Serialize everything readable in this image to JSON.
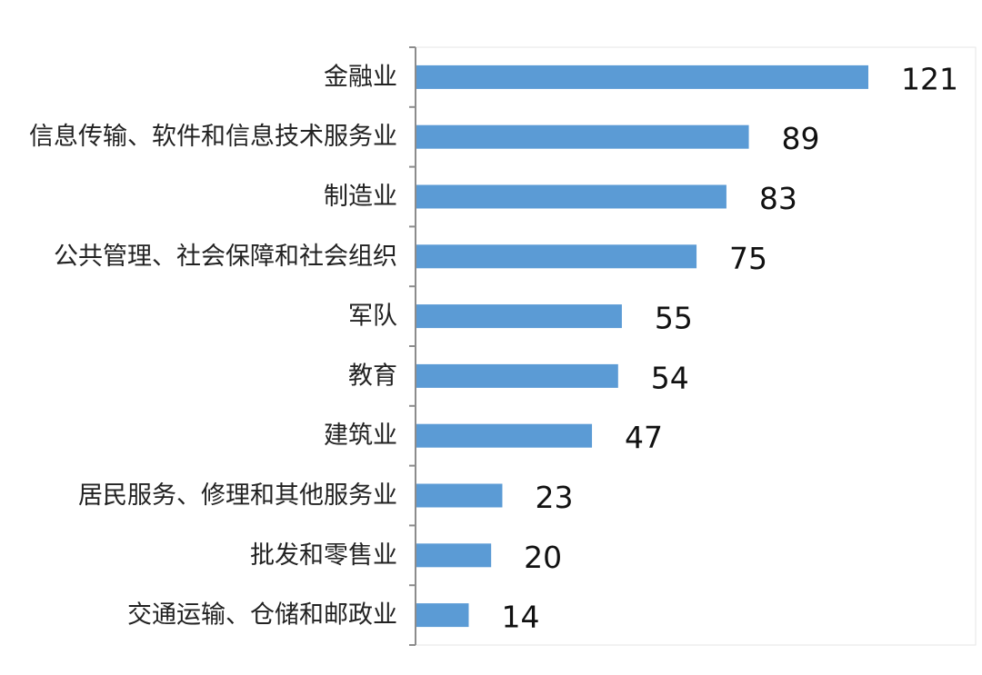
{
  "chart_data": {
    "type": "bar",
    "orientation": "horizontal",
    "categories": [
      "金融业",
      "信息传输、软件和信息技术服务业",
      "制造业",
      "公共管理、社会保障和社会组织",
      "军队",
      "教育",
      "建筑业",
      "居民服务、修理和其他服务业",
      "批发和零售业",
      "交通运输、仓储和邮政业"
    ],
    "values": [
      121,
      89,
      83,
      75,
      55,
      54,
      47,
      23,
      20,
      14
    ],
    "data_labels": [
      "121",
      "89",
      "83",
      "75",
      "55",
      "54",
      "47",
      "23",
      "20",
      "14"
    ],
    "title": "",
    "xlabel": "",
    "ylabel": "",
    "xlim": [
      0,
      130
    ],
    "grid": false,
    "legend": "none",
    "bar_color": "#5b9bd5",
    "axis_color": "#8c8c8c"
  }
}
